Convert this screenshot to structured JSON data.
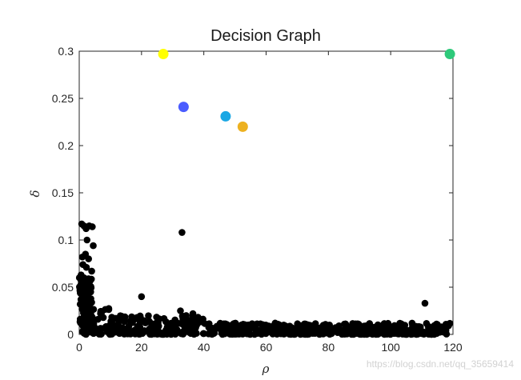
{
  "chart_data": {
    "type": "scatter",
    "title": "Decision Graph",
    "xlabel": "ρ",
    "ylabel": "δ",
    "xlim": [
      0,
      120
    ],
    "ylim": [
      0,
      0.3
    ],
    "xticks": [
      0,
      20,
      40,
      60,
      80,
      100,
      120
    ],
    "yticks": [
      0,
      0.05,
      0.1,
      0.15,
      0.2,
      0.25,
      0.3
    ],
    "ytick_labels": [
      "0",
      "0.05",
      "0.1",
      "0.15",
      "0.2",
      "0.25",
      "0.3"
    ],
    "grid": false,
    "box": true,
    "centers": [
      {
        "x": 27,
        "y": 0.297,
        "color": "#ffff00"
      },
      {
        "x": 33.5,
        "y": 0.241,
        "color": "#4a5cff"
      },
      {
        "x": 47,
        "y": 0.231,
        "color": "#1aa7e4"
      },
      {
        "x": 52.5,
        "y": 0.22,
        "color": "#edb120"
      },
      {
        "x": 119,
        "y": 0.297,
        "color": "#2ec97a"
      }
    ],
    "outliers": [
      {
        "x": 0.8,
        "y": 0.117
      },
      {
        "x": 1.5,
        "y": 0.115
      },
      {
        "x": 2.2,
        "y": 0.112
      },
      {
        "x": 3.2,
        "y": 0.115
      },
      {
        "x": 4.2,
        "y": 0.114
      },
      {
        "x": 2.5,
        "y": 0.1
      },
      {
        "x": 4.5,
        "y": 0.094
      },
      {
        "x": 1.0,
        "y": 0.082
      },
      {
        "x": 2.0,
        "y": 0.085
      },
      {
        "x": 3.0,
        "y": 0.08
      },
      {
        "x": 1.2,
        "y": 0.074
      },
      {
        "x": 2.3,
        "y": 0.071
      },
      {
        "x": 4.0,
        "y": 0.067
      },
      {
        "x": 0.6,
        "y": 0.063
      },
      {
        "x": 1.5,
        "y": 0.06
      },
      {
        "x": 2.7,
        "y": 0.057
      },
      {
        "x": 33,
        "y": 0.108
      },
      {
        "x": 20,
        "y": 0.04
      },
      {
        "x": 32.5,
        "y": 0.025
      },
      {
        "x": 36.5,
        "y": 0.022
      },
      {
        "x": 111,
        "y": 0.033
      }
    ],
    "cluster_note": "dense band of black points along rho 0–120, delta 0–0.03"
  },
  "watermark": "https://blog.csdn.net/qq_35659414"
}
